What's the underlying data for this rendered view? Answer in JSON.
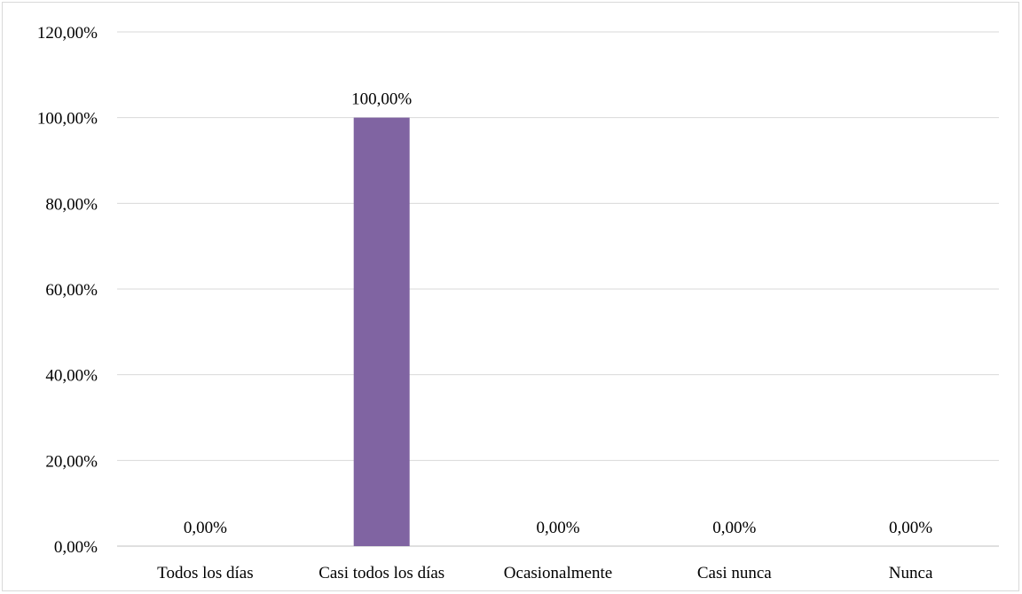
{
  "chart_data": {
    "type": "bar",
    "title": "",
    "xlabel": "",
    "ylabel": "",
    "categories": [
      "Todos los días",
      "Casi todos los días",
      "Ocasionalmente",
      "Casi nunca",
      "Nunca"
    ],
    "values": [
      0,
      100,
      0,
      0,
      0
    ],
    "data_labels": [
      "0,00%",
      "100,00%",
      "0,00%",
      "0,00%",
      "0,00%"
    ],
    "ylim": [
      0,
      120
    ],
    "yticks": [
      0,
      20,
      40,
      60,
      80,
      100,
      120
    ],
    "ytick_labels": [
      "0,00%",
      "20,00%",
      "40,00%",
      "60,00%",
      "80,00%",
      "100,00%",
      "120,00%"
    ],
    "bar_color": "#8064a2",
    "grid": true,
    "legend": "none"
  }
}
